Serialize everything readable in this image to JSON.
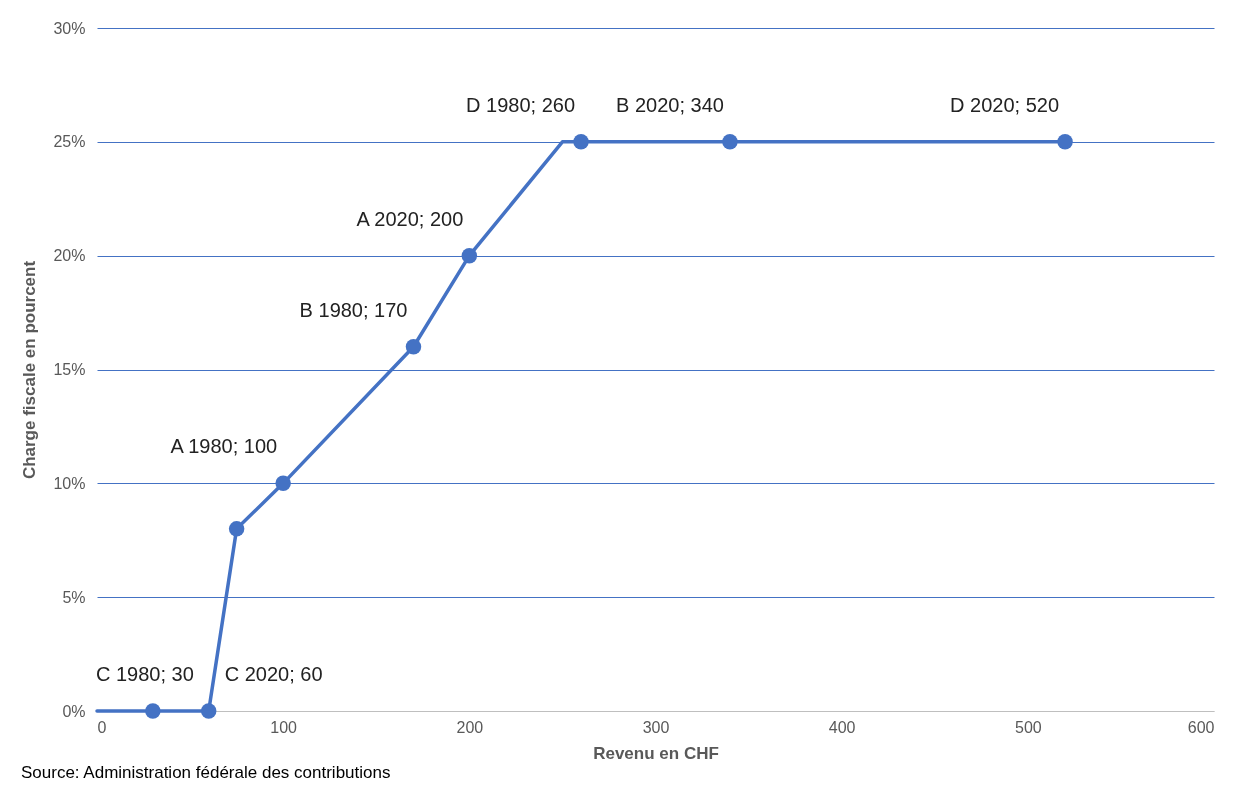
{
  "chart_data": {
    "type": "line",
    "xlabel": "Revenu en CHF",
    "ylabel": "Charge fiscale en pourcent",
    "xlim": [
      0,
      600
    ],
    "xticks": [
      0,
      100,
      200,
      300,
      400,
      500,
      600
    ],
    "ylim": [
      0,
      30
    ],
    "yticks": [
      {
        "value": 0,
        "label": "0%"
      },
      {
        "value": 5,
        "label": "5%"
      },
      {
        "value": 10,
        "label": "10%"
      },
      {
        "value": 15,
        "label": "15%"
      },
      {
        "value": 20,
        "label": "20%"
      },
      {
        "value": 25,
        "label": "25%"
      },
      {
        "value": 30,
        "label": "30%"
      }
    ],
    "grid": "y",
    "series": [
      {
        "type": "line",
        "color": "#4472c4",
        "marker": "none",
        "x": [
          0,
          30,
          60,
          75,
          100,
          170,
          200,
          250,
          260,
          340,
          520
        ],
        "values": [
          0,
          0,
          0,
          8,
          10,
          16,
          20,
          25,
          25,
          25,
          25
        ]
      },
      {
        "type": "scatter",
        "color": "#4472c4",
        "marker": "circle",
        "x": [
          30,
          60,
          75,
          100,
          170,
          200,
          260,
          340,
          520
        ],
        "values": [
          0,
          0,
          8,
          10,
          16,
          20,
          25,
          25,
          25
        ]
      }
    ],
    "annotations": [
      {
        "text": "C 1980; 30",
        "x": 30,
        "y": 0
      },
      {
        "text": "C 2020; 60",
        "x": 60,
        "y": 0
      },
      {
        "text": "A 1980; 100",
        "x": 100,
        "y": 10
      },
      {
        "text": "B 1980; 170",
        "x": 170,
        "y": 16
      },
      {
        "text": "A 2020; 200",
        "x": 200,
        "y": 20
      },
      {
        "text": "D 1980; 260",
        "x": 260,
        "y": 25
      },
      {
        "text": "B 2020; 340",
        "x": 340,
        "y": 25
      },
      {
        "text": "D 2020; 520",
        "x": 520,
        "y": 25
      },
      "Source: Administration fédérale des contributions"
    ]
  }
}
